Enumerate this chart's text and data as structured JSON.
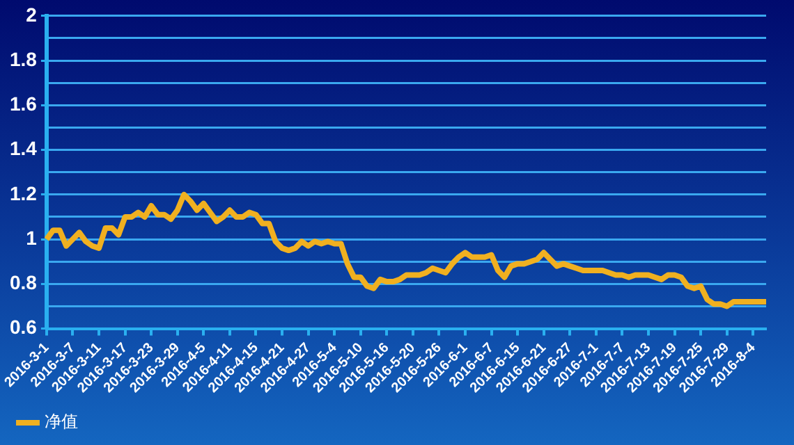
{
  "chart_data": {
    "type": "line",
    "categories": [
      "2016-3-1",
      null,
      null,
      null,
      "2016-3-7",
      null,
      null,
      null,
      "2016-3-11",
      null,
      null,
      null,
      "2016-3-17",
      null,
      null,
      null,
      "2016-3-23",
      null,
      null,
      null,
      "2016-3-29",
      null,
      null,
      null,
      "2016-4-5",
      null,
      null,
      null,
      "2016-4-11",
      null,
      null,
      null,
      "2016-4-15",
      null,
      null,
      null,
      "2016-4-21",
      null,
      null,
      null,
      "2016-4-27",
      null,
      null,
      null,
      "2016-5-4",
      null,
      null,
      null,
      "2016-5-10",
      null,
      null,
      null,
      "2016-5-16",
      null,
      null,
      null,
      "2016-5-20",
      null,
      null,
      null,
      "2016-5-26",
      null,
      null,
      null,
      "2016-6-1",
      null,
      null,
      null,
      "2016-6-7",
      null,
      null,
      null,
      "2016-6-15",
      null,
      null,
      null,
      "2016-6-21",
      null,
      null,
      null,
      "2016-6-27",
      null,
      null,
      null,
      "2016-7-1",
      null,
      null,
      null,
      "2016-7-7",
      null,
      null,
      null,
      "2016-7-13",
      null,
      null,
      null,
      "2016-7-19",
      null,
      null,
      null,
      "2016-7-25",
      null,
      null,
      null,
      "2016-7-29",
      null,
      null,
      null,
      "2016-8-4",
      null,
      null
    ],
    "series": [
      {
        "name": "净值",
        "color": "#f0b020",
        "values": [
          1.0,
          1.04,
          1.04,
          0.97,
          1.0,
          1.03,
          0.99,
          0.97,
          0.96,
          1.05,
          1.05,
          1.02,
          1.1,
          1.1,
          1.12,
          1.1,
          1.15,
          1.11,
          1.11,
          1.09,
          1.13,
          1.2,
          1.17,
          1.13,
          1.16,
          1.12,
          1.08,
          1.1,
          1.13,
          1.1,
          1.1,
          1.12,
          1.11,
          1.07,
          1.07,
          0.99,
          0.96,
          0.95,
          0.96,
          0.99,
          0.97,
          0.99,
          0.98,
          0.99,
          0.98,
          0.98,
          0.89,
          0.83,
          0.83,
          0.79,
          0.78,
          0.82,
          0.81,
          0.81,
          0.82,
          0.84,
          0.84,
          0.84,
          0.85,
          0.87,
          0.86,
          0.85,
          0.89,
          0.92,
          0.94,
          0.92,
          0.92,
          0.92,
          0.93,
          0.86,
          0.83,
          0.88,
          0.89,
          0.89,
          0.9,
          0.91,
          0.94,
          0.91,
          0.88,
          0.89,
          0.88,
          0.87,
          0.86,
          0.86,
          0.86,
          0.86,
          0.85,
          0.84,
          0.84,
          0.83,
          0.84,
          0.84,
          0.84,
          0.83,
          0.82,
          0.84,
          0.84,
          0.83,
          0.79,
          0.78,
          0.79,
          0.73,
          0.71,
          0.71,
          0.7,
          0.72,
          0.72,
          0.72,
          0.72,
          0.72,
          0.72
        ]
      }
    ],
    "ylim": [
      0.6,
      2
    ],
    "yticks": [
      0.6,
      {
        "value": 0.7,
        "label": null
      },
      0.8,
      {
        "value": 0.9,
        "label": null
      },
      1,
      {
        "value": 1.1,
        "label": null
      },
      1.2,
      {
        "value": 1.3,
        "label": null
      },
      1.4,
      {
        "value": 1.5,
        "label": null
      },
      1.6,
      {
        "value": 1.7,
        "label": null
      },
      1.8,
      {
        "value": 1.9,
        "label": null
      },
      2
    ],
    "grid": "y",
    "legend": "bottom left",
    "marker": "none",
    "line_style": "solid"
  }
}
